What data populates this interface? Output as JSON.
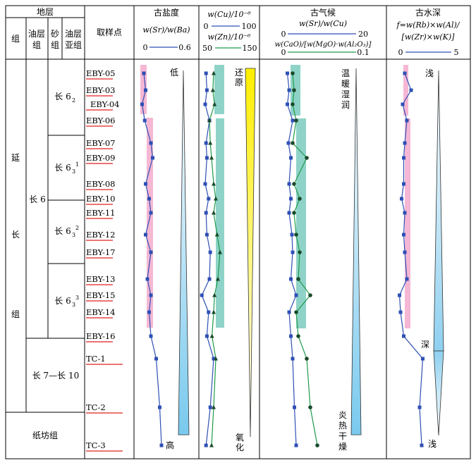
{
  "header": {
    "stratum": "地层",
    "group": "组",
    "oil_group": "油层组",
    "sand_group": "砂组",
    "oil_subgroup": "油层亚组",
    "sample_point": "取样点",
    "paleo_salinity": "古盐度",
    "salinity_ratio": "w(Sr)/w(Ba)",
    "redox_top": "w(Cu)/10⁻⁶",
    "redox_bottom": "w(Zn)/10⁻⁶",
    "paleoclimate": "古气候",
    "climate_ratio": "w(Sr)/w(Cu)",
    "climate_ratio2": "w(CaO)/[w(MgO)·w(Al₂O₃)]",
    "paleowater_depth": "古水深",
    "depth_formula_1": "f=w(Rb)×w(Al)/",
    "depth_formula_2": "[w(Zr)×w(K)]"
  },
  "axes": {
    "sal_min": "0",
    "sal_max": "0.6",
    "cu_min": "0",
    "cu_max": "100",
    "zn_min": "50",
    "zn_max": "150",
    "srcu_min": "0",
    "srcu_max": "20",
    "cao_min": "0",
    "cao_max": "0.1",
    "f_min": "0",
    "f_max": "5"
  },
  "strata": {
    "formation": [
      "延",
      "长",
      "组"
    ],
    "chang6": "长 6",
    "chang7_10": "长 7—长 10",
    "zhifang": "纸坊组",
    "sub62": "长 6",
    "sub62_sub": "2",
    "sub631": "长 6",
    "sub631_sub": "3",
    "sub631_sup": "1",
    "sub632": "长 6",
    "sub632_sub": "3",
    "sub632_sup": "2",
    "sub633": "长 6",
    "sub633_sub": "3",
    "sub633_sup": "3"
  },
  "samples": [
    "EBY-05",
    "EBY-03",
    "EBY-04",
    "EBY-06",
    "EBY-07",
    "EBY-09",
    "EBY-08",
    "EBY-10",
    "EBY-11",
    "EBY-12",
    "EBY-17",
    "EBY-13",
    "EBY-15",
    "EBY-14",
    "EBY-16",
    "TC-1",
    "TC-2",
    "TC-3"
  ],
  "annotations": {
    "low": "低",
    "high": "高",
    "reduce_1": "还",
    "reduce_2": "原",
    "oxid_1": "氧",
    "oxid_2": "化",
    "warm": [
      "温",
      "暖",
      "湿",
      "润"
    ],
    "hot": [
      "炎",
      "热",
      "干",
      "燥"
    ],
    "shallow_top": "浅",
    "deep": "深",
    "shallow_bottom": "浅"
  },
  "colors": {
    "blue": "#2e4fb4",
    "green": "#1e9a4a",
    "pink": "#f5b7d4",
    "teal": "#8fd3c8",
    "lightblue": "#a6ddf2",
    "yellow": "#ffee00"
  },
  "chart_data": {
    "type": "line",
    "sample_depth_order": [
      "EBY-05",
      "EBY-03",
      "EBY-04",
      "EBY-06",
      "EBY-07",
      "EBY-09",
      "EBY-08",
      "EBY-10",
      "EBY-11",
      "EBY-12",
      "EBY-17",
      "EBY-13",
      "EBY-15",
      "EBY-14",
      "EBY-16",
      "TC-1",
      "TC-2",
      "TC-3"
    ],
    "series": [
      {
        "name": "w(Sr)/w(Ba)",
        "values": [
          0.04,
          0.06,
          0.02,
          0.05,
          0.12,
          0.14,
          0.06,
          0.1,
          0.12,
          0.06,
          0.12,
          0.08,
          0.12,
          0.1,
          0.12,
          0.18,
          0.22,
          0.24
        ]
      },
      {
        "name": "w(Cu)",
        "values": [
          12,
          14,
          10,
          20,
          12,
          14,
          10,
          18,
          12,
          14,
          22,
          20,
          2,
          18,
          14,
          30,
          22,
          12
        ]
      },
      {
        "name": "w(Zn)",
        "values": [
          80,
          78,
          82,
          70,
          72,
          75,
          80,
          85,
          80,
          88,
          95,
          90,
          82,
          80,
          76,
          85,
          80,
          75
        ]
      },
      {
        "name": "w(Sr)/w(Cu)",
        "values": [
          0.5,
          1.0,
          0.5,
          2.0,
          0.8,
          1.5,
          1.0,
          1.5,
          1.0,
          1.8,
          2.0,
          1.5,
          3.0,
          1.0,
          1.5,
          2.0,
          2.5,
          3.0
        ]
      },
      {
        "name": "w(CaO)/[w(MgO)·w(Al2O3)]",
        "values": [
          0.01,
          0.012,
          0.01,
          0.015,
          0.01,
          0.03,
          0.012,
          0.02,
          0.012,
          0.015,
          0.02,
          0.018,
          0.035,
          0.015,
          0.018,
          0.03,
          0.035,
          0.045
        ]
      },
      {
        "name": "f",
        "values": [
          0.6,
          1.2,
          0.4,
          0.8,
          0.6,
          0.5,
          0.5,
          0.3,
          0.6,
          0.5,
          0.6,
          0.8,
          0.1,
          0.2,
          0.5,
          2.3,
          2.0,
          2.2
        ]
      }
    ]
  }
}
